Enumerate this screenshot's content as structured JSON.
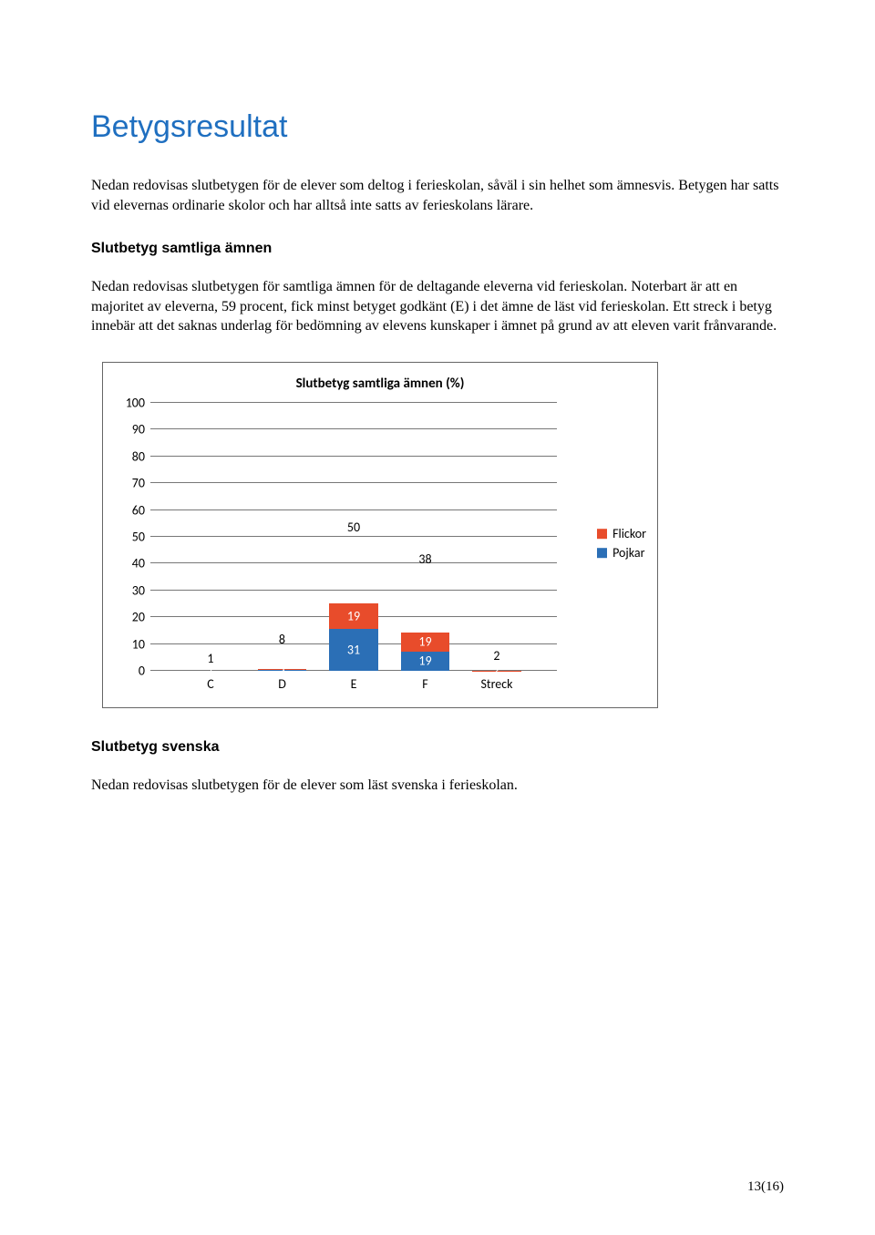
{
  "title": "Betygsresultat",
  "intro": "Nedan redovisas slutbetygen för de elever som deltog i ferieskolan, såväl i sin helhet som ämnesvis. Betygen har satts vid elevernas ordinarie skolor och har alltså inte satts av ferieskolans lärare.",
  "section1_heading": "Slutbetyg samtliga ämnen",
  "section1_body": "Nedan redovisas slutbetygen för samtliga ämnen för de deltagande eleverna vid ferieskolan. Noterbart är att en majoritet av eleverna, 59 procent, fick minst betyget godkänt (E) i det ämne de läst vid ferieskolan. Ett streck i betyg innebär att det saknas underlag för bedömning av elevens kunskaper i ämnet på grund av att eleven varit frånvarande.",
  "section2_heading": "Slutbetyg svenska",
  "section2_body": "Nedan redovisas slutbetygen för de elever som läst svenska i ferieskolan.",
  "chart": {
    "title": "Slutbetyg samtliga ämnen (%)",
    "categories": [
      "C",
      "D",
      "E",
      "F",
      "Streck"
    ],
    "flickor": [
      1,
      5,
      19,
      19,
      2
    ],
    "pojkar": [
      0,
      3,
      31,
      19,
      0
    ],
    "totals": [
      1,
      8,
      50,
      38,
      2
    ],
    "y_ticks": [
      0,
      10,
      20,
      30,
      40,
      50,
      60,
      70,
      80,
      90,
      100
    ],
    "color_flickor": "#e84c2b",
    "color_pojkar": "#2b6fb6",
    "legend_flickor": "Flickor",
    "legend_pojkar": "Pojkar"
  },
  "page_number": "13(16)"
}
